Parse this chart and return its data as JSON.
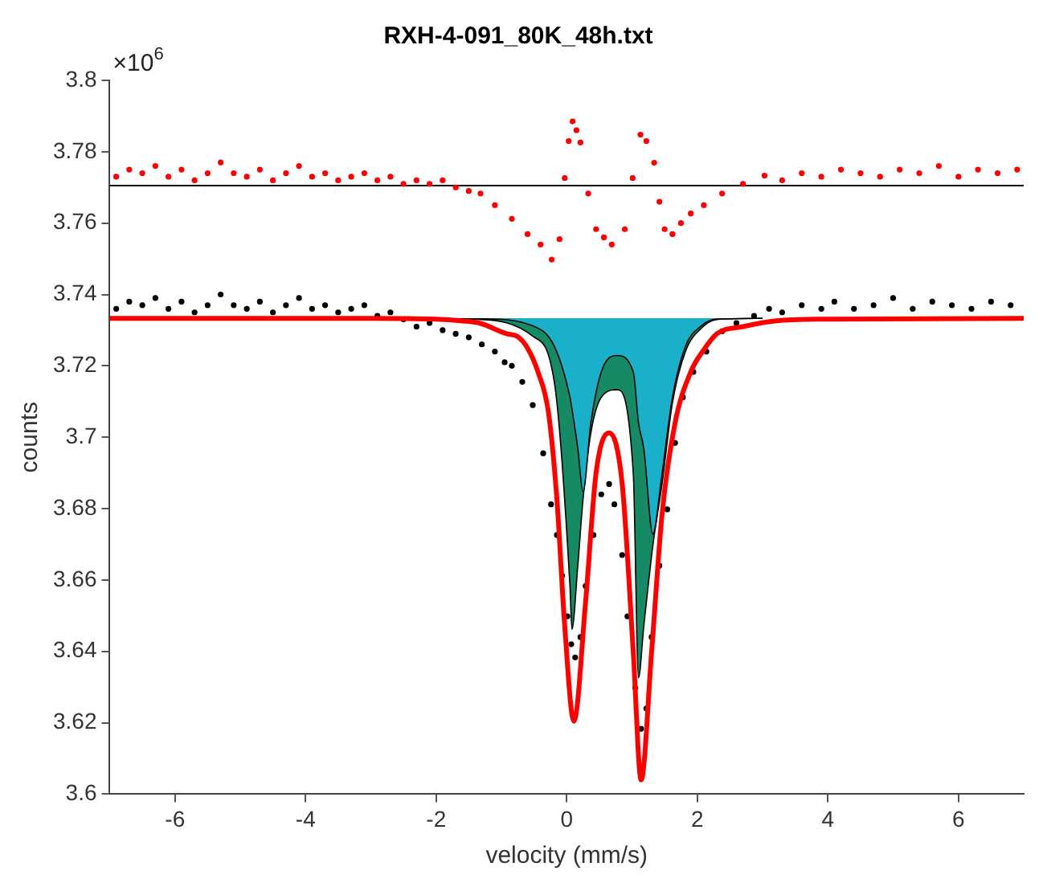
{
  "chart_data": {
    "type": "scatter",
    "title": "RXH-4-091_80K_48h.txt",
    "xlabel": "velocity (mm/s)",
    "ylabel": "counts",
    "annotations": [
      "×10$^{6}$"
    ],
    "xlim": [
      -7,
      7
    ],
    "xticks": [
      -6,
      -4,
      -2,
      0,
      2,
      4,
      6
    ],
    "ylim": [
      3.6,
      3.8
    ],
    "yticks": [
      3.6,
      3.62,
      3.64,
      3.66,
      3.68,
      3.7,
      3.72,
      3.74,
      3.76,
      3.78,
      3.8
    ],
    "grid": false,
    "legend": false,
    "ref_lines": [
      {
        "axis": "y",
        "value": 3.7705,
        "color": "#000000"
      }
    ],
    "series": [
      {
        "marker": "circle",
        "color": "#000000",
        "x": [
          -6.9,
          -6.7,
          -6.5,
          -6.3,
          -6.1,
          -5.9,
          -5.7,
          -5.5,
          -5.3,
          -5.1,
          -4.9,
          -4.7,
          -4.5,
          -4.3,
          -4.1,
          -3.9,
          -3.7,
          -3.5,
          -3.3,
          -3.1,
          -2.9,
          -2.7,
          -2.5,
          -2.3,
          -2.1,
          -1.9,
          -1.7,
          -1.5,
          -1.3,
          -1.1,
          -0.95,
          -0.84,
          -0.68,
          -0.52,
          -0.36,
          -0.24,
          -0.15,
          -0.07,
          0.01,
          0.07,
          0.13,
          0.21,
          0.29,
          0.41,
          0.53,
          0.65,
          0.73,
          0.85,
          0.93,
          1.05,
          1.14,
          1.22,
          1.3,
          1.42,
          1.54,
          1.66,
          1.78,
          1.94,
          2.14,
          2.38,
          2.6,
          2.87,
          3.1,
          3.3,
          3.6,
          3.9,
          4.1,
          4.4,
          4.7,
          5.0,
          5.3,
          5.6,
          5.9,
          6.2,
          6.5,
          6.8
        ],
        "values": [
          3.736,
          3.738,
          3.737,
          3.739,
          3.736,
          3.738,
          3.735,
          3.737,
          3.74,
          3.737,
          3.736,
          3.738,
          3.735,
          3.737,
          3.739,
          3.736,
          3.737,
          3.735,
          3.736,
          3.737,
          3.734,
          3.735,
          3.733,
          3.731,
          3.732,
          3.73,
          3.729,
          3.728,
          3.726,
          3.724,
          3.721,
          3.72,
          3.7155,
          3.709,
          3.6955,
          3.6812,
          3.6726,
          3.6612,
          3.6498,
          3.642,
          3.6383,
          3.644,
          3.6583,
          3.6726,
          3.684,
          3.6869,
          3.6812,
          3.667,
          3.6498,
          3.6298,
          3.6183,
          3.624,
          3.644,
          3.664,
          3.6798,
          3.6984,
          3.7112,
          3.7183,
          3.724,
          3.7297,
          3.732,
          3.734,
          3.736,
          3.735,
          3.737,
          3.736,
          3.738,
          3.736,
          3.737,
          3.739,
          3.736,
          3.738,
          3.737,
          3.736,
          3.738,
          3.737
        ]
      },
      {
        "marker": "circle",
        "color": "#ff0000",
        "x": [
          -6.9,
          -6.7,
          -6.5,
          -6.3,
          -6.1,
          -5.9,
          -5.7,
          -5.5,
          -5.3,
          -5.1,
          -4.9,
          -4.7,
          -4.5,
          -4.3,
          -4.1,
          -3.9,
          -3.7,
          -3.5,
          -3.3,
          -3.1,
          -2.9,
          -2.7,
          -2.5,
          -2.3,
          -2.1,
          -1.9,
          -1.7,
          -1.5,
          -1.32,
          -1.1,
          -0.84,
          -0.6,
          -0.4,
          -0.23,
          -0.11,
          -0.03,
          0.03,
          0.09,
          0.15,
          0.21,
          0.33,
          0.45,
          0.57,
          0.69,
          0.89,
          1.01,
          1.13,
          1.22,
          1.34,
          1.42,
          1.5,
          1.62,
          1.75,
          1.9,
          2.1,
          2.38,
          2.7,
          3.03,
          3.3,
          3.6,
          3.9,
          4.2,
          4.5,
          4.8,
          5.1,
          5.4,
          5.7,
          6.0,
          6.3,
          6.6,
          6.9
        ],
        "values": [
          3.773,
          3.775,
          3.774,
          3.776,
          3.773,
          3.775,
          3.772,
          3.774,
          3.777,
          3.774,
          3.773,
          3.775,
          3.772,
          3.774,
          3.776,
          3.773,
          3.774,
          3.772,
          3.773,
          3.774,
          3.772,
          3.773,
          3.771,
          3.772,
          3.771,
          3.772,
          3.77,
          3.769,
          3.7683,
          3.765,
          3.7612,
          3.7569,
          3.754,
          3.7498,
          3.7555,
          3.7726,
          3.783,
          3.7885,
          3.786,
          3.7826,
          3.7683,
          3.7583,
          3.756,
          3.754,
          3.7583,
          3.7726,
          3.7848,
          3.783,
          3.7769,
          3.766,
          3.7583,
          3.7569,
          3.76,
          3.7627,
          3.765,
          3.7683,
          3.771,
          3.7733,
          3.772,
          3.774,
          3.773,
          3.775,
          3.774,
          3.773,
          3.775,
          3.774,
          3.776,
          3.773,
          3.775,
          3.774,
          3.775
        ]
      },
      {
        "type": "area",
        "color": "#1ab0c9",
        "x": [
          -3,
          -1.32,
          -0.52,
          -0.19,
          0.05,
          0.08,
          0.17,
          0.25,
          0.37,
          0.53,
          0.77,
          1.02,
          1.1,
          1.18,
          1.32,
          1.46,
          1.62,
          1.82,
          2.06,
          2.3,
          3
        ],
        "values": [
          3.7333,
          3.7332,
          3.7312,
          3.7255,
          3.7112,
          3.708,
          3.6969,
          3.6847,
          3.704,
          3.7183,
          3.7229,
          3.7183,
          3.704,
          3.6969,
          3.6729,
          3.6898,
          3.7112,
          3.7255,
          3.7312,
          3.7331,
          3.7333
        ]
      },
      {
        "type": "area",
        "color": "#168a64",
        "x": [
          -3,
          -1.32,
          -0.52,
          -0.19,
          0.05,
          0.08,
          0.17,
          0.25,
          0.37,
          0.53,
          0.77,
          1.02,
          1.1,
          1.18,
          1.32,
          1.46,
          1.62,
          1.82,
          2.06,
          2.3,
          3
        ],
        "values": [
          3.7333,
          3.733,
          3.7283,
          3.7155,
          3.6583,
          3.6462,
          3.664,
          3.6826,
          3.7012,
          3.7112,
          3.7133,
          3.6898,
          3.6326,
          3.6469,
          3.6697,
          3.6869,
          3.7097,
          3.7241,
          3.7305,
          3.733,
          3.7333
        ]
      },
      {
        "type": "line",
        "color": "#ff0000",
        "x": [
          -7,
          -3,
          -2,
          -1.6,
          -1.32,
          -0.92,
          -0.76,
          -0.6,
          -0.44,
          -0.28,
          -0.15,
          -0.03,
          0.11,
          0.29,
          0.45,
          0.65,
          0.85,
          1.02,
          1.14,
          1.3,
          1.46,
          1.66,
          1.9,
          2.1,
          2.3,
          2.7,
          3.19,
          4,
          7
        ],
        "values": [
          3.7333,
          3.7333,
          3.7331,
          3.7326,
          3.7319,
          3.729,
          3.7283,
          3.725,
          3.7183,
          3.707,
          3.6826,
          3.647,
          3.6204,
          3.654,
          3.69,
          3.7012,
          3.6869,
          3.6397,
          3.604,
          3.6397,
          3.6783,
          3.704,
          3.7183,
          3.7245,
          3.729,
          3.731,
          3.7326,
          3.7331,
          3.7333
        ]
      }
    ]
  }
}
